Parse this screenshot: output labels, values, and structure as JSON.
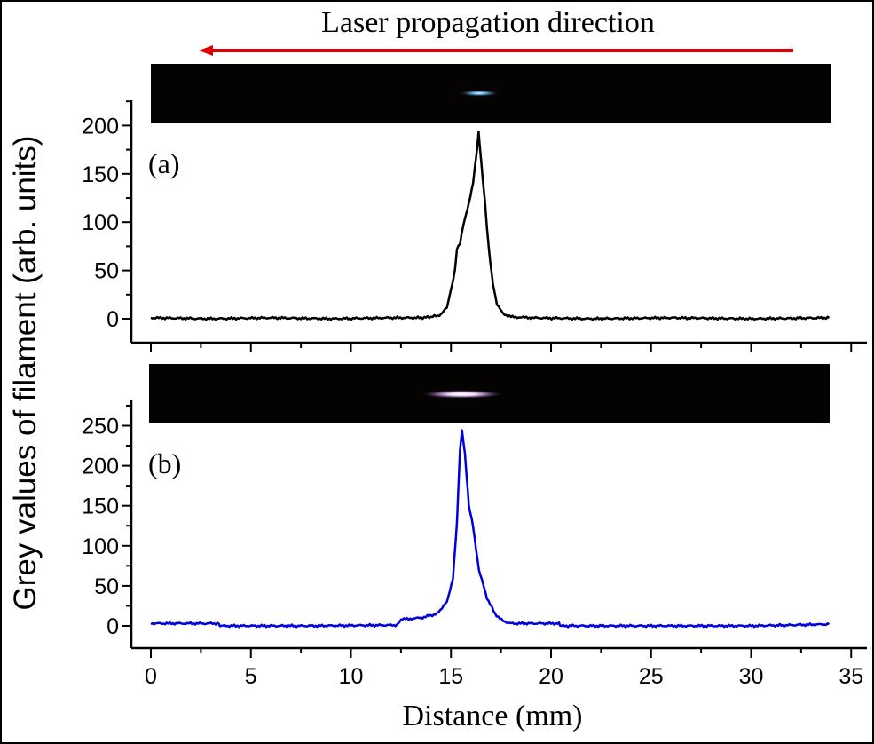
{
  "chart_data": {
    "type": "line",
    "title": "Laser propagation direction",
    "xlabel": "Distance (mm)",
    "ylabel": "Grey values of filament (arb. units)",
    "xlim": [
      -0.5,
      35.5
    ],
    "xticks": [
      0,
      5,
      10,
      15,
      20,
      25,
      30,
      35
    ],
    "arrow_color": "#e00000",
    "panels": [
      {
        "label": "(a)",
        "color": "#000000",
        "ylim": [
          -25,
          225
        ],
        "yticks": [
          0,
          50,
          100,
          150,
          200
        ],
        "x": [
          0,
          3,
          6,
          9,
          12,
          13.5,
          14,
          14.5,
          14.8,
          15.0,
          15.2,
          15.3,
          15.45,
          15.6,
          15.9,
          16.1,
          16.3,
          16.38,
          16.5,
          16.7,
          16.9,
          17.1,
          17.3,
          17.6,
          18,
          19,
          22,
          26,
          30,
          33.9
        ],
        "y": [
          1,
          0,
          1,
          0,
          1,
          1,
          2,
          4,
          12,
          30,
          50,
          73,
          78,
          95,
          120,
          140,
          175,
          193,
          165,
          120,
          70,
          35,
          15,
          5,
          2,
          1,
          0,
          1,
          0,
          1
        ]
      },
      {
        "label": "(b)",
        "color": "#0000e0",
        "ylim": [
          -25,
          275
        ],
        "yticks": [
          0,
          50,
          100,
          150,
          200,
          250
        ],
        "x": [
          0,
          3.4,
          3.45,
          8,
          12.3,
          12.5,
          13.5,
          14.3,
          14.8,
          15.1,
          15.3,
          15.45,
          15.55,
          15.7,
          15.9,
          16.1,
          16.4,
          16.8,
          17.2,
          17.6,
          18,
          20.4,
          20.45,
          25,
          30,
          33.9
        ],
        "y": [
          3,
          3,
          0,
          0,
          1,
          8,
          10,
          15,
          30,
          60,
          130,
          220,
          244,
          215,
          150,
          125,
          70,
          35,
          15,
          6,
          3,
          3,
          0,
          0,
          0,
          2
        ]
      }
    ]
  }
}
